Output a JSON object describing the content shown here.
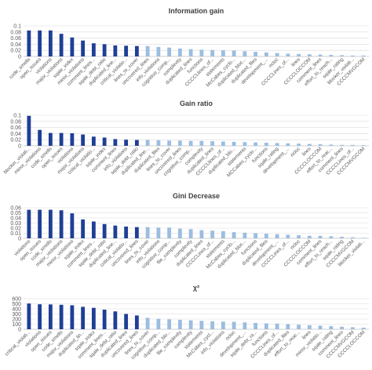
{
  "chart_data": [
    {
      "type": "bar",
      "title": "Information gain",
      "ylim": [
        0,
        0.1
      ],
      "yticks": [
        "0",
        "0.02",
        "0.04",
        "0.06",
        "0.08",
        "0.1"
      ],
      "grid": true,
      "highlight_count": 11,
      "categories": [
        "code_smells",
        "open_issues",
        "violations",
        "major_violations",
        "sqale_index",
        "minor_violations",
        "comment_lines...",
        "sqale_debt_ratio",
        "duplicated_line...",
        "critical_violatio...",
        "lines_to_cover",
        "uncovered_lines",
        "info_violations",
        "cognitive_comp...",
        "complexity",
        "duplicated_lines",
        "functions",
        "CCCCLlines_of...",
        "statements",
        "McCabes_cyclo...",
        "duplicated_bloc...",
        "duplicated_files",
        "development_...",
        "ncloc",
        "CCCCLines_of...",
        "lines",
        "CCCCLOCCOM",
        "comment_lines",
        "effort_to_reach...",
        "sqale_rating",
        "blocker_violati...",
        "CCCCMVGCOM"
      ],
      "values": [
        0.085,
        0.085,
        0.085,
        0.074,
        0.062,
        0.052,
        0.043,
        0.04,
        0.036,
        0.035,
        0.034,
        0.034,
        0.031,
        0.029,
        0.026,
        0.024,
        0.022,
        0.021,
        0.02,
        0.019,
        0.017,
        0.015,
        0.013,
        0.011,
        0.009,
        0.008,
        0.007,
        0.006,
        0.005,
        0.004,
        0.003,
        0.003
      ]
    },
    {
      "type": "bar",
      "title": "Gain ratio",
      "ylim": [
        0,
        0.1
      ],
      "yticks": [
        "0",
        "0.02",
        "0.04",
        "0.06",
        "0.08",
        "0.1"
      ],
      "grid": true,
      "highlight_count": 11,
      "categories": [
        "blocker_violati...",
        "minor_violations",
        "code_smells",
        "open_issues",
        "violations",
        "major_violations",
        "critical_violatio...",
        "sqale_index",
        "comment_lines",
        "info_violations",
        "sqale_debt_ratio",
        "duplicated_line...",
        "duplicated_files",
        "lines_to_cover",
        "uncovered_lines",
        "cognitive_comp...",
        "complexity",
        "duplicated_lines",
        "CCCCLlines_of...",
        "duplicated_blo...",
        "statements",
        "MCCabes_cyclo...",
        "functions",
        "sqale_rating",
        "development_...",
        "ncloc",
        "lines",
        "CCCCLOCCOM",
        "effort_to_reac...",
        "comment_lines",
        "CCCCLines_of...",
        "CCCCMVGCOM"
      ],
      "values": [
        0.098,
        0.052,
        0.042,
        0.042,
        0.041,
        0.037,
        0.03,
        0.027,
        0.022,
        0.02,
        0.019,
        0.019,
        0.018,
        0.017,
        0.017,
        0.016,
        0.016,
        0.015,
        0.014,
        0.013,
        0.012,
        0.011,
        0.01,
        0.009,
        0.008,
        0.007,
        0.006,
        0.005,
        0.004,
        0.003,
        0.003,
        0.002
      ]
    },
    {
      "type": "bar",
      "title": "Gini Decrease",
      "ylim": [
        0,
        0.06
      ],
      "yticks": [
        "0",
        "0.01",
        "0.02",
        "0.03",
        "0.04",
        "0.05",
        "0.06"
      ],
      "grid": true,
      "highlight_count": 11,
      "categories": [
        "violations",
        "open_issues",
        "code_smells",
        "major_violations",
        "minor_violations",
        "sqale_index",
        "comment_lines...",
        "sqale_debt_ratio",
        "duplicated_line...",
        "critical_violatio...",
        "uncovered_lines",
        "lines_to_cover",
        "info_violations",
        "cognitive_comp...",
        "file_complexity",
        "complexity",
        "duplicated_lines",
        "CCCCLines_of...",
        "statements",
        "McCabes_cyclo...",
        "duplicated_bloc...",
        "functions",
        "duplicated_files",
        "development_...",
        "CCCCLines_of...",
        "ncloc",
        "CCCCLOCCOM",
        "comment_lines",
        "effort_to_reach...",
        "sqale_rating",
        "CCCCMVGCOM",
        "blocker_violati..."
      ],
      "values": [
        0.056,
        0.056,
        0.056,
        0.055,
        0.049,
        0.037,
        0.033,
        0.028,
        0.025,
        0.023,
        0.022,
        0.022,
        0.021,
        0.021,
        0.019,
        0.018,
        0.016,
        0.015,
        0.014,
        0.012,
        0.011,
        0.01,
        0.009,
        0.008,
        0.007,
        0.006,
        0.005,
        0.005,
        0.004,
        0.003,
        0.002,
        0.001
      ]
    },
    {
      "type": "bar",
      "title": "χ²",
      "ylim": [
        0,
        600
      ],
      "yticks": [
        "0",
        "100",
        "200",
        "300",
        "400",
        "500",
        "600"
      ],
      "grid": true,
      "highlight_count": 11,
      "categories": [
        "critical_violati...",
        "violations",
        "open_issues",
        "code_smells",
        "major_violations",
        "duplicated_lin...",
        "sqale_index",
        "comment_lines...",
        "sqale_debt_ratio",
        "duplicated_lines",
        "uncovered_lines",
        "lines_to_cover",
        "cognitive_comp...",
        "duplicated_blo...",
        "file_complexity",
        "complexity",
        "statements",
        "McCabes_cycl...",
        "info_violations",
        "ncloc",
        "development_...",
        "sqale_debt_ra...",
        "functions",
        "CCCCLines_of...",
        "duplicated_files",
        "effort_to_reac...",
        "lines",
        "minor_violatio...",
        "sqale_rating",
        "comment_lines",
        "CCCCMVGCOM",
        "CCCCLOCCOM"
      ],
      "values": [
        505,
        490,
        487,
        480,
        470,
        440,
        420,
        385,
        350,
        300,
        270,
        225,
        205,
        195,
        185,
        175,
        165,
        155,
        150,
        145,
        135,
        125,
        115,
        110,
        100,
        90,
        80,
        70,
        60,
        50,
        40,
        30
      ]
    }
  ],
  "colors": {
    "highlight": "#1f3f96",
    "normal": "#9bbde0",
    "grid": "#d9d9d9",
    "axis": "#bfbfbf",
    "text": "#595959",
    "title": "#404040"
  }
}
